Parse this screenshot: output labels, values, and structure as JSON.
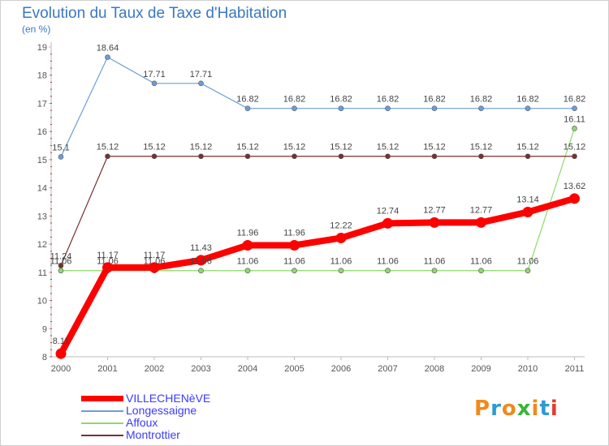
{
  "title": "Evolution du Taux de Taxe d'Habitation",
  "subtitle": "(en %)",
  "logo": {
    "text": "Proxiti",
    "colors": [
      "#f08a1c",
      "#2d9ad6",
      "#f08a1c",
      "#3ab33a",
      "#f08a1c",
      "#2d9ad6",
      "#e63b2e"
    ]
  },
  "chart_data": {
    "type": "line",
    "title": "Evolution du Taux de Taxe d'Habitation",
    "ylabel": "(en %)",
    "xlabel": "",
    "ylim": [
      8,
      19
    ],
    "yticks": [
      8,
      9,
      10,
      11,
      12,
      13,
      14,
      15,
      16,
      17,
      18,
      19
    ],
    "x": [
      "2000",
      "2001",
      "2002",
      "2003",
      "2004",
      "2005",
      "2006",
      "2007",
      "2008",
      "2009",
      "2010",
      "2011"
    ],
    "series": [
      {
        "name": "VILLECHENèVE",
        "color": "#ff0000",
        "values": [
          8.11,
          11.17,
          11.17,
          11.43,
          11.96,
          11.96,
          12.22,
          12.74,
          12.77,
          12.77,
          13.14,
          13.62
        ],
        "labels": [
          "8.11",
          "11.17",
          "11.17",
          "11.43",
          "11.96",
          "11.96",
          "12.22",
          "12.74",
          "12.77",
          "12.77",
          "13.14",
          "13.62"
        ]
      },
      {
        "name": "Longessaigne",
        "color": "#6a9fd6",
        "values": [
          15.1,
          18.64,
          17.71,
          17.71,
          16.82,
          16.82,
          16.82,
          16.82,
          16.82,
          16.82,
          16.82,
          16.82
        ],
        "labels": [
          "15.1",
          "18.64",
          "17.71",
          "17.71",
          "16.82",
          "16.82",
          "16.82",
          "16.82",
          "16.82",
          "16.82",
          "16.82",
          "16.82"
        ]
      },
      {
        "name": "Affoux",
        "color": "#8fd96b",
        "values": [
          11.06,
          11.06,
          11.06,
          11.06,
          11.06,
          11.06,
          11.06,
          11.06,
          11.06,
          11.06,
          11.06,
          16.11
        ],
        "labels": [
          "11.06",
          "11.06",
          "11.06",
          "11.06",
          "11.06",
          "11.06",
          "11.06",
          "11.06",
          "11.06",
          "11.06",
          "11.06",
          "16.11"
        ]
      },
      {
        "name": "Montrottier",
        "color": "#7a2f2f",
        "values": [
          11.24,
          15.12,
          15.12,
          15.12,
          15.12,
          15.12,
          15.12,
          15.12,
          15.12,
          15.12,
          15.12,
          15.12
        ],
        "labels": [
          "11.24",
          "15.12",
          "15.12",
          "15.12",
          "15.12",
          "15.12",
          "15.12",
          "15.12",
          "15.12",
          "15.12",
          "15.12",
          "15.12"
        ]
      }
    ],
    "legend_position": "bottom-left",
    "grid": false
  }
}
